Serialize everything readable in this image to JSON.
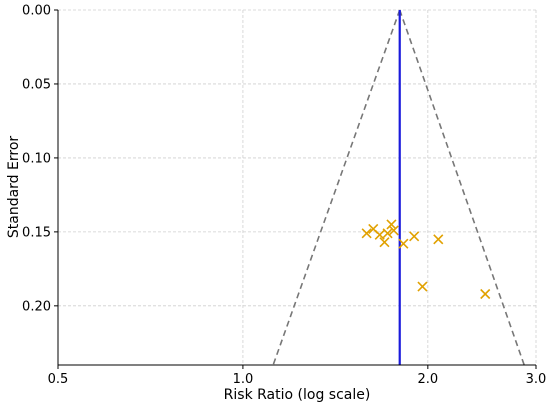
{
  "chart_data": {
    "type": "scatter",
    "xlabel": "Risk Ratio (log scale)",
    "ylabel": "Standard Error",
    "x_scale": "log",
    "y_inverted": true,
    "xlim": [
      0.5,
      3.0
    ],
    "ylim": [
      0.0,
      0.24
    ],
    "x_ticks": [
      {
        "value": 0.5,
        "label": "0.5"
      },
      {
        "value": 1.0,
        "label": "1.0"
      },
      {
        "value": 2.0,
        "label": "2.0"
      },
      {
        "value": 3.0,
        "label": "3.0"
      }
    ],
    "y_ticks": [
      {
        "value": 0.0,
        "label": "0.00"
      },
      {
        "value": 0.05,
        "label": "0.05"
      },
      {
        "value": 0.1,
        "label": "0.10"
      },
      {
        "value": 0.15,
        "label": "0.15"
      },
      {
        "value": 0.2,
        "label": "0.20"
      }
    ],
    "grid": true,
    "pooled_estimate": 1.8,
    "funnel_limits": {
      "center": 1.8,
      "apex_se": 0.0,
      "bottom_se": 0.24,
      "left_bottom_x": 1.12,
      "right_bottom_x": 2.87
    },
    "points": [
      {
        "x": 1.59,
        "y": 0.151
      },
      {
        "x": 1.63,
        "y": 0.148
      },
      {
        "x": 1.67,
        "y": 0.152
      },
      {
        "x": 1.7,
        "y": 0.157
      },
      {
        "x": 1.72,
        "y": 0.151
      },
      {
        "x": 1.745,
        "y": 0.145
      },
      {
        "x": 1.76,
        "y": 0.149
      },
      {
        "x": 1.825,
        "y": 0.158
      },
      {
        "x": 1.9,
        "y": 0.153
      },
      {
        "x": 1.96,
        "y": 0.187
      },
      {
        "x": 2.08,
        "y": 0.155
      },
      {
        "x": 2.48,
        "y": 0.192
      }
    ],
    "colors": {
      "points": "#e1a100",
      "pooled_line": "#1a1adb",
      "funnel": "#777777",
      "grid": "#cfcfcf",
      "axis": "#000000"
    }
  }
}
